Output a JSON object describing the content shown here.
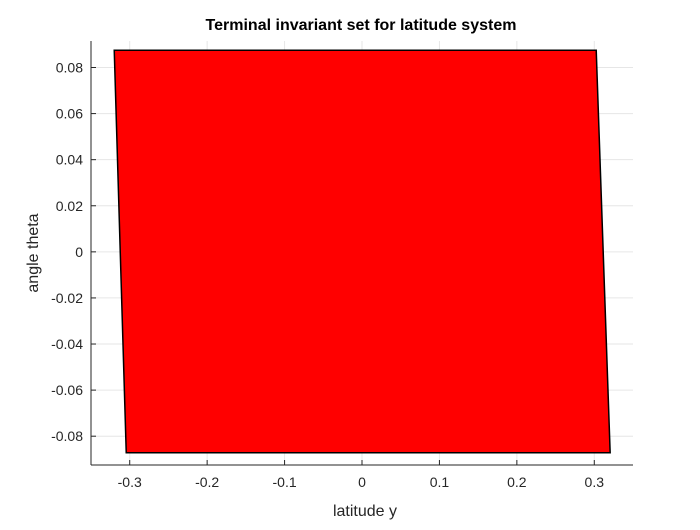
{
  "chart_data": {
    "type": "area",
    "title": "Terminal invariant set for latitude system",
    "xlabel": "latitude y",
    "ylabel": "angle theta",
    "xlim": [
      -0.35,
      0.35
    ],
    "ylim": [
      -0.0925,
      0.0915
    ],
    "xticks": [
      -0.3,
      -0.2,
      -0.1,
      0,
      0.1,
      0.2,
      0.3
    ],
    "xtick_labels": [
      "-0.3",
      "-0.2",
      "-0.1",
      "0",
      "0.1",
      "0.2",
      "0.3"
    ],
    "yticks": [
      0.08,
      0.06,
      0.04,
      0.02,
      0,
      -0.02,
      -0.04,
      -0.06,
      -0.08
    ],
    "ytick_labels": [
      "0.08",
      "0.06",
      "0.04",
      "0.02",
      "0",
      "-0.02",
      "-0.04",
      "-0.06",
      "-0.08"
    ],
    "grid": true,
    "box": "left-bottom",
    "series": [
      {
        "fill_color": "#ff0000",
        "edge_color": "#000000",
        "x": [
          -0.32,
          0.3025,
          0.3205,
          -0.3045
        ],
        "y": [
          0.0875,
          0.0875,
          -0.0872,
          -0.0872
        ]
      }
    ]
  }
}
